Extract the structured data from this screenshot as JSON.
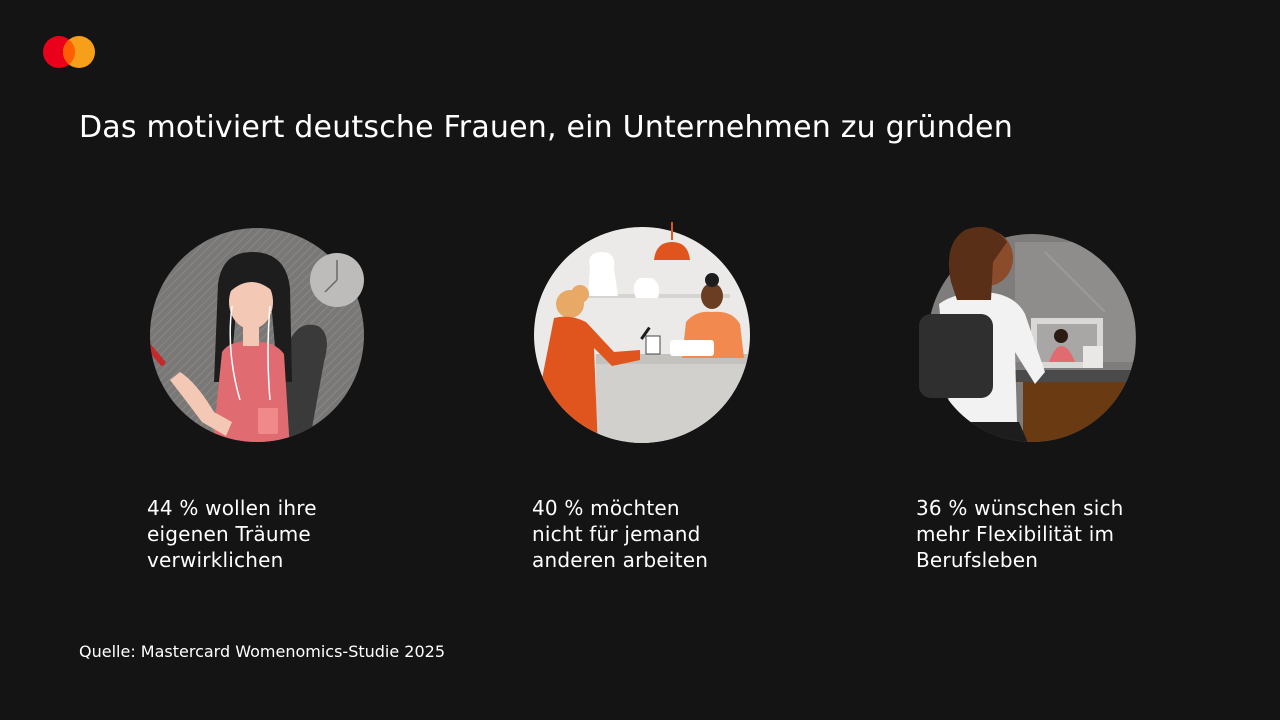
{
  "brand": {
    "logo_icon": "mastercard-logo-icon",
    "colors": {
      "red": "#eb001b",
      "orange": "#f79e1b",
      "overlap": "#ff5f00",
      "background": "#141414"
    }
  },
  "title": "Das motiviert deutsche Frauen, ein Unternehmen zu gründen",
  "stats": [
    {
      "icon": "woman-with-phone-illustration",
      "lines": [
        "44 % wollen ihre",
        "eigenen Träume",
        "verwirklichen"
      ]
    },
    {
      "icon": "shop-owner-illustration",
      "lines": [
        "40 % möchten",
        "nicht für jemand",
        "anderen arbeiten"
      ]
    },
    {
      "icon": "remote-work-illustration",
      "lines": [
        "36 % wünschen sich",
        "mehr Flexibilität im",
        "Berufsleben"
      ]
    }
  ],
  "source": "Quelle: Mastercard Womenomics-Studie 2025"
}
